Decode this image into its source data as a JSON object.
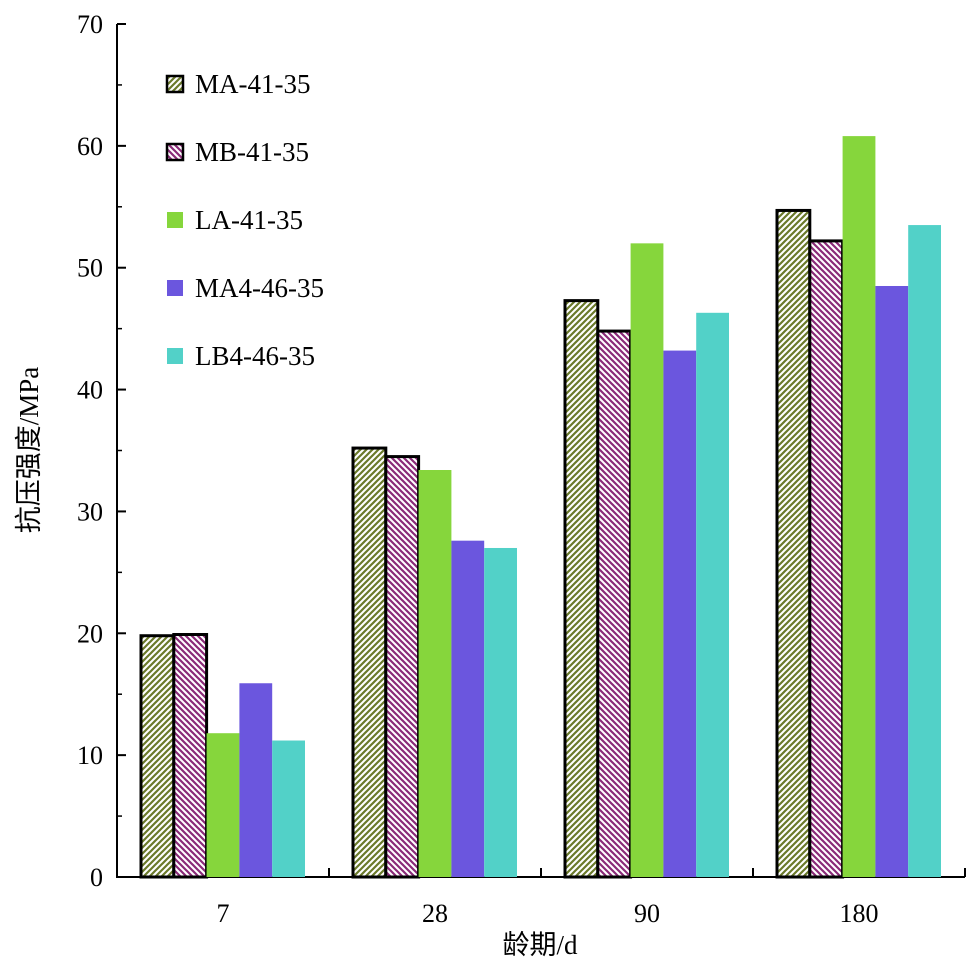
{
  "chart_data": {
    "type": "bar",
    "title": "",
    "xlabel": "龄期/d",
    "ylabel": "抗压强度/MPa",
    "categories": [
      "7",
      "28",
      "90",
      "180"
    ],
    "ylim": [
      0,
      70
    ],
    "yticks": [
      0,
      10,
      20,
      30,
      40,
      50,
      60,
      70
    ],
    "grid": false,
    "legend_position": "top-left",
    "series": [
      {
        "name": "MA-41-35",
        "values": [
          19.8,
          35.2,
          47.3,
          54.7
        ],
        "color": "#6b7a2a",
        "fill": "hatch-olive"
      },
      {
        "name": "MB-41-35",
        "values": [
          19.9,
          34.5,
          44.8,
          52.2
        ],
        "color": "#8a2a78",
        "fill": "hatch-purple"
      },
      {
        "name": "LA-41-35",
        "values": [
          11.8,
          33.4,
          52.0,
          60.8
        ],
        "color": "#86d63c",
        "fill": "solid"
      },
      {
        "name": "MA4-46-35",
        "values": [
          15.9,
          27.6,
          43.2,
          48.5
        ],
        "color": "#6b56de",
        "fill": "solid"
      },
      {
        "name": "LB4-46-35",
        "values": [
          11.2,
          27.0,
          46.3,
          53.5
        ],
        "color": "#52d1c8",
        "fill": "solid"
      }
    ]
  }
}
